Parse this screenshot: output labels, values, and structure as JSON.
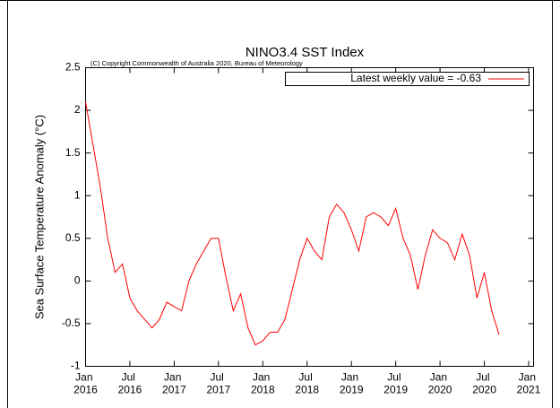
{
  "chart_data": {
    "type": "line",
    "title": "NINO3.4 SST Index",
    "subtitle": "(C) Copyright Commonwealth of Australia 2020, Bureau of Meteorology",
    "y_label": "Sea Surface Temperature Anomaly (°C)",
    "x": [
      "2016-01",
      "2016-02",
      "2016-03",
      "2016-04",
      "2016-05",
      "2016-06",
      "2016-07",
      "2016-08",
      "2016-09",
      "2016-10",
      "2016-11",
      "2016-12",
      "2017-01",
      "2017-02",
      "2017-03",
      "2017-04",
      "2017-05",
      "2017-06",
      "2017-07",
      "2017-08",
      "2017-09",
      "2017-10",
      "2017-11",
      "2017-12",
      "2018-01",
      "2018-02",
      "2018-03",
      "2018-04",
      "2018-05",
      "2018-06",
      "2018-07",
      "2018-08",
      "2018-09",
      "2018-10",
      "2018-11",
      "2018-12",
      "2019-01",
      "2019-02",
      "2019-03",
      "2019-04",
      "2019-05",
      "2019-06",
      "2019-07",
      "2019-08",
      "2019-09",
      "2019-10",
      "2019-11",
      "2019-12",
      "2020-01",
      "2020-02",
      "2020-03",
      "2020-04",
      "2020-05",
      "2020-06",
      "2020-07",
      "2020-08",
      "2020-09"
    ],
    "series": [
      {
        "name": "Latest weekly value = -0.63",
        "color": "#ff0000",
        "values": [
          2.1,
          1.6,
          1.1,
          0.5,
          0.1,
          0.2,
          -0.2,
          -0.35,
          -0.45,
          -0.55,
          -0.45,
          -0.25,
          -0.3,
          -0.35,
          0.0,
          0.2,
          0.35,
          0.5,
          0.5,
          0.05,
          -0.35,
          -0.15,
          -0.55,
          -0.75,
          -0.7,
          -0.6,
          -0.6,
          -0.45,
          -0.1,
          0.25,
          0.5,
          0.35,
          0.25,
          0.75,
          0.9,
          0.8,
          0.6,
          0.35,
          0.75,
          0.8,
          0.75,
          0.65,
          0.85,
          0.5,
          0.3,
          -0.1,
          0.3,
          0.6,
          0.5,
          0.45,
          0.25,
          0.55,
          0.3,
          -0.2,
          0.1,
          -0.35,
          -0.63
        ]
      }
    ],
    "xlim": [
      "2016-01",
      "2021-01"
    ],
    "ylim": [
      -1,
      2.5
    ],
    "yticks": [
      -1,
      -0.5,
      0,
      0.5,
      1,
      1.5,
      2,
      2.5
    ],
    "xticks": [
      {
        "value": "2016-01",
        "label": "Jan 2016"
      },
      {
        "value": "2016-07",
        "label": "Jul 2016"
      },
      {
        "value": "2017-01",
        "label": "Jan 2017"
      },
      {
        "value": "2017-07",
        "label": "Jul 2017"
      },
      {
        "value": "2018-01",
        "label": "Jan 2018"
      },
      {
        "value": "2018-07",
        "label": "Jul 2018"
      },
      {
        "value": "2019-01",
        "label": "Jan 2019"
      },
      {
        "value": "2019-07",
        "label": "Jul 2019"
      },
      {
        "value": "2020-01",
        "label": "Jan 2020"
      },
      {
        "value": "2020-07",
        "label": "Jul 2020"
      },
      {
        "value": "2021-01",
        "label": "Jan 2021"
      }
    ],
    "legend": "upper right",
    "grid": false
  }
}
